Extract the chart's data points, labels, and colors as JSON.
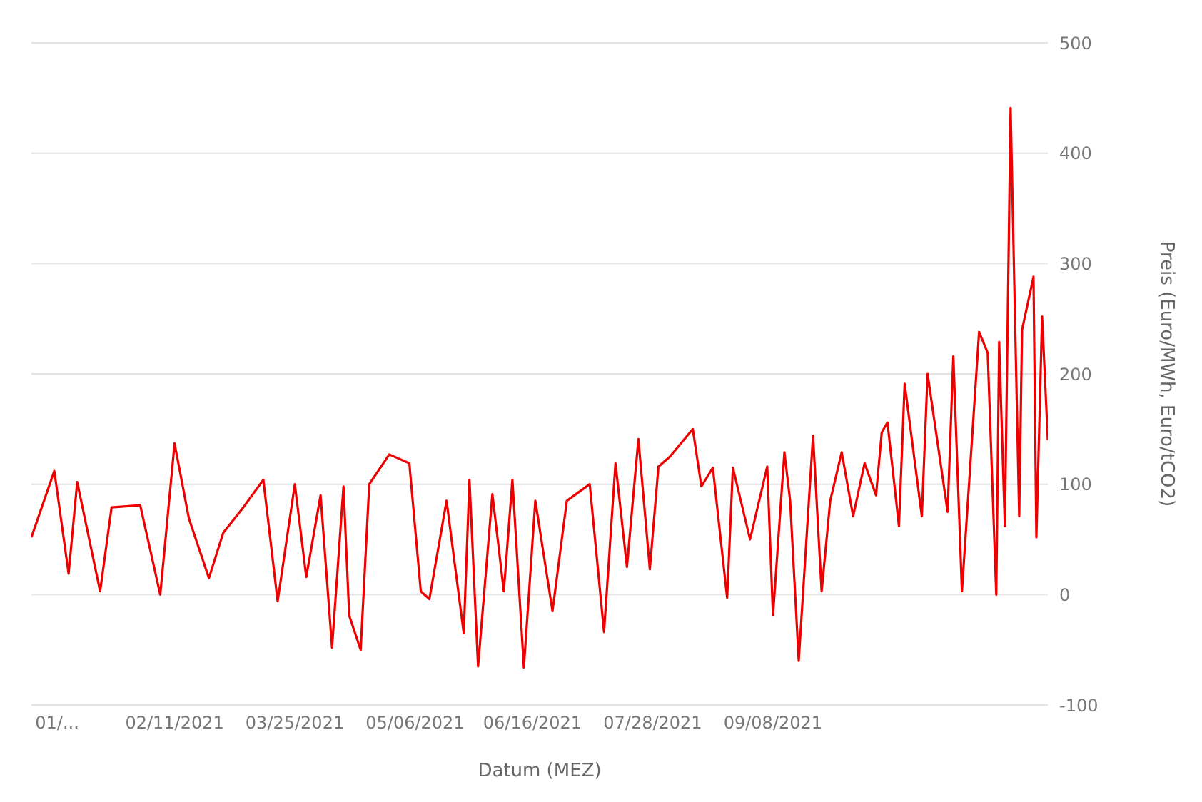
{
  "chart_data": {
    "type": "line",
    "xlabel": "Datum (MEZ)",
    "ylabel": "Preis (Euro/MWh, Euro/tCO2)",
    "xlim": [
      "2020-12-23",
      "2021-12-13"
    ],
    "xticks": [
      {
        "value": "2021-01-01",
        "label": "01/..."
      },
      {
        "value": "2021-02-11",
        "label": "02/11/2021"
      },
      {
        "value": "2021-03-25",
        "label": "03/25/2021"
      },
      {
        "value": "2021-05-06",
        "label": "05/06/2021"
      },
      {
        "value": "2021-06-16",
        "label": "06/16/2021"
      },
      {
        "value": "2021-07-28",
        "label": "07/28/2021"
      },
      {
        "value": "2021-09-08",
        "label": "09/08/2021"
      }
    ],
    "ylim": [
      -100,
      500
    ],
    "yticks": [
      -100,
      0,
      100,
      200,
      300,
      400,
      500
    ],
    "grid": "y",
    "legend": false,
    "marker": "none",
    "line_style": "solid",
    "x": [
      "2020-12-23",
      "2020-12-31",
      "2021-01-05",
      "2021-01-08",
      "2021-01-16",
      "2021-01-20",
      "2021-01-30",
      "2021-02-06",
      "2021-02-11",
      "2021-02-16",
      "2021-02-23",
      "2021-02-28",
      "2021-03-07",
      "2021-03-14",
      "2021-03-19",
      "2021-03-25",
      "2021-03-29",
      "2021-04-03",
      "2021-04-07",
      "2021-04-11",
      "2021-04-13",
      "2021-04-17",
      "2021-04-20",
      "2021-04-27",
      "2021-05-04",
      "2021-05-08",
      "2021-05-11",
      "2021-05-17",
      "2021-05-23",
      "2021-05-25",
      "2021-05-28",
      "2021-06-02",
      "2021-06-06",
      "2021-06-09",
      "2021-06-13",
      "2021-06-17",
      "2021-06-23",
      "2021-06-28",
      "2021-07-06",
      "2021-07-11",
      "2021-07-15",
      "2021-07-19",
      "2021-07-23",
      "2021-07-27",
      "2021-07-30",
      "2021-08-03",
      "2021-08-11",
      "2021-08-14",
      "2021-08-18",
      "2021-08-23",
      "2021-08-25",
      "2021-08-31",
      "2021-09-06",
      "2021-09-08",
      "2021-09-12",
      "2021-09-14",
      "2021-09-17",
      "2021-09-22",
      "2021-09-25",
      "2021-09-28",
      "2021-10-02",
      "2021-10-06",
      "2021-10-10",
      "2021-10-14",
      "2021-10-16",
      "2021-10-18",
      "2021-10-22",
      "2021-10-24",
      "2021-10-30",
      "2021-11-01",
      "2021-11-08",
      "2021-11-10",
      "2021-11-13",
      "2021-11-19",
      "2021-11-22",
      "2021-11-25",
      "2021-11-26",
      "2021-11-28",
      "2021-11-30",
      "2021-12-03",
      "2021-12-04",
      "2021-12-08",
      "2021-12-09",
      "2021-12-11",
      "2021-12-13"
    ],
    "series": [
      {
        "color": "#ee0000",
        "values": [
          52,
          112,
          19,
          102,
          3,
          79,
          81,
          0,
          137,
          69,
          15,
          56,
          79,
          104,
          -6,
          100,
          16,
          90,
          -48,
          98,
          -19,
          -50,
          100,
          127,
          119,
          3,
          -4,
          85,
          -35,
          104,
          -65,
          91,
          3,
          104,
          -66,
          85,
          -15,
          85,
          100,
          -34,
          119,
          25,
          141,
          23,
          116,
          125,
          150,
          98,
          115,
          -3,
          115,
          50,
          116,
          -19,
          129,
          85,
          -60,
          144,
          3,
          85,
          129,
          71,
          119,
          90,
          147,
          156,
          62,
          191,
          71,
          200,
          75,
          216,
          3,
          238,
          219,
          0,
          229,
          62,
          441,
          71,
          240,
          288,
          52,
          252,
          140
        ]
      }
    ]
  }
}
